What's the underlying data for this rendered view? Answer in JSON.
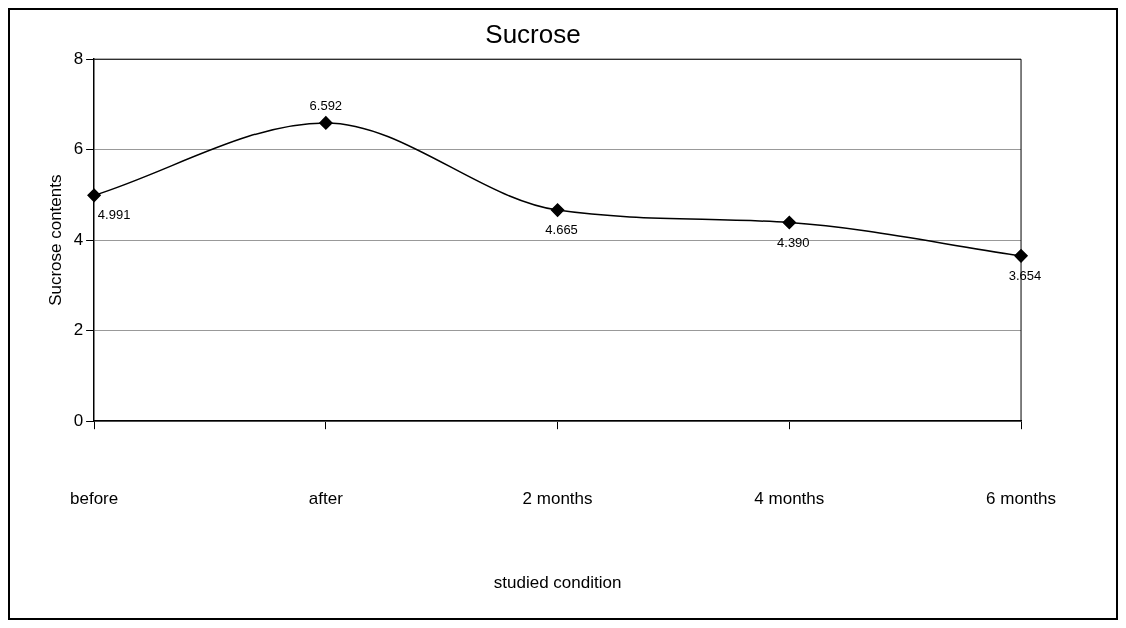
{
  "chart_data": {
    "type": "line",
    "title": "Sucrose",
    "xlabel": "studied condition",
    "ylabel": "Sucrose contents",
    "categories": [
      "before",
      "after",
      "2 months",
      "4 months",
      "6 months"
    ],
    "series": [
      {
        "color": "#000000",
        "values": [
          4.991,
          6.592,
          4.665,
          4.39,
          3.654
        ],
        "value_labels": [
          "4.991",
          "6.592",
          "4.665",
          "4.390",
          "3.654"
        ]
      }
    ],
    "ylim": [
      0,
      8
    ],
    "yticks": [
      0,
      2,
      4,
      6,
      8
    ],
    "grid": "y",
    "legend": false,
    "marker": "diamond",
    "line_style": "solid"
  }
}
